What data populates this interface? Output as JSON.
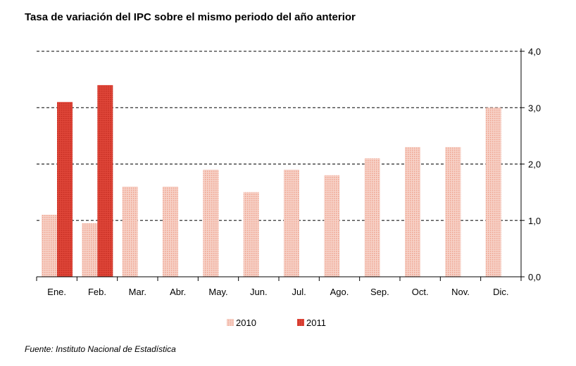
{
  "chart_data": {
    "type": "bar",
    "title": "Tasa de variación del IPC sobre el mismo periodo del año anterior",
    "source": "Fuente: Instituto Nacional de Estadística",
    "categories": [
      "Ene.",
      "Feb.",
      "Mar.",
      "Abr.",
      "May.",
      "Jun.",
      "Jul.",
      "Ago.",
      "Sep.",
      "Oct.",
      "Nov.",
      "Dic."
    ],
    "series": [
      {
        "name": "2010",
        "color": "#f2b6a6",
        "values": [
          1.1,
          0.95,
          1.6,
          1.6,
          1.9,
          1.5,
          1.9,
          1.8,
          2.1,
          2.3,
          2.3,
          3.0
        ]
      },
      {
        "name": "2011",
        "color": "#d93a2b",
        "values": [
          3.1,
          3.4,
          null,
          null,
          null,
          null,
          null,
          null,
          null,
          null,
          null,
          null
        ]
      }
    ],
    "ylim": [
      0,
      4
    ],
    "yticks": [
      0,
      1,
      2,
      3,
      4
    ],
    "ytick_labels": [
      "0,0",
      "1,0",
      "2,0",
      "3,0",
      "4,0"
    ],
    "grid": true,
    "y_axis_side": "right",
    "legend_position": "bottom"
  }
}
